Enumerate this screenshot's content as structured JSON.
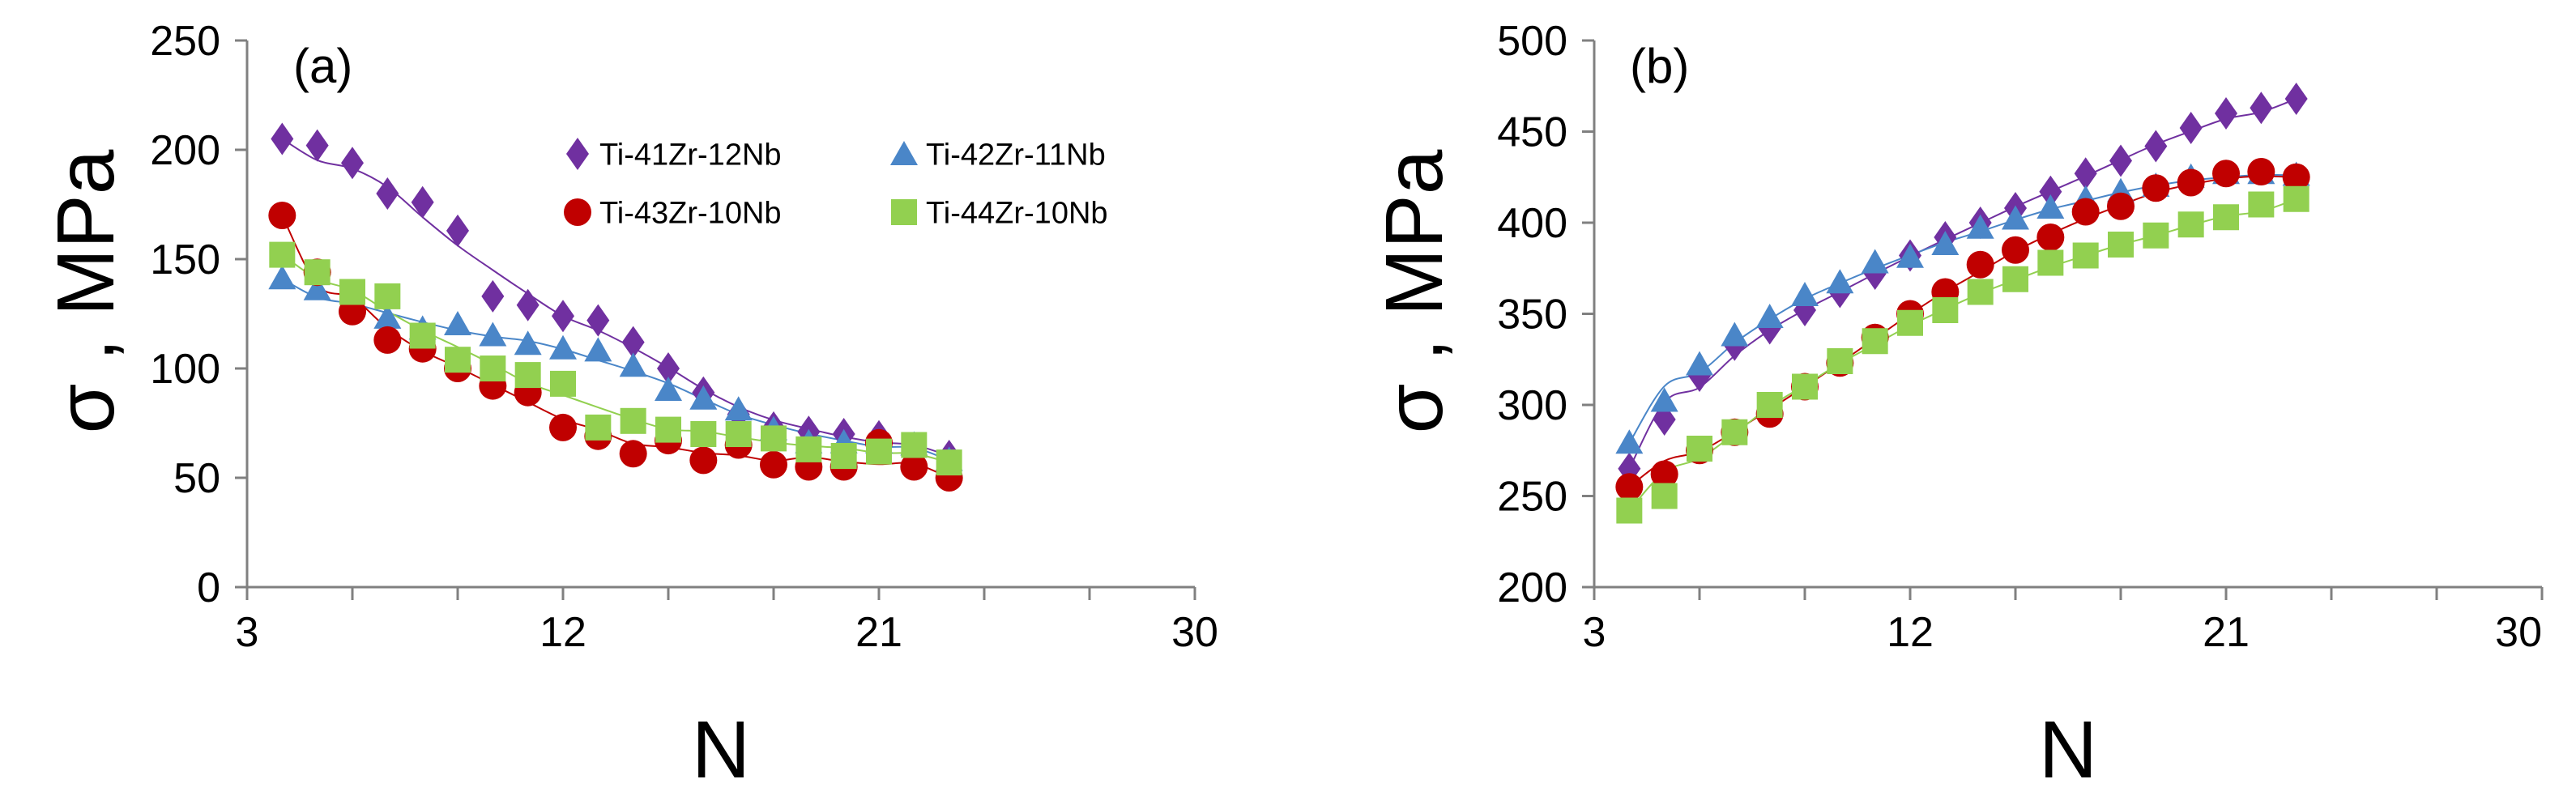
{
  "chart_data": [
    {
      "type": "scatter",
      "panel_label": "(a)",
      "xlabel": "N",
      "ylabel": "σ , MPa",
      "xlim": [
        3,
        30
      ],
      "ylim": [
        0,
        250
      ],
      "xticks": [
        "3",
        "12",
        "21",
        "30"
      ],
      "yticks": [
        "0",
        "50",
        "100",
        "150",
        "200",
        "250"
      ],
      "legend_position": "top-right",
      "series": [
        {
          "name": "Ti-41Zr-12Nb",
          "marker": "diamond",
          "color": "#7030A0",
          "x": [
            4,
            5,
            6,
            7,
            8,
            9,
            10,
            11,
            12,
            13,
            14,
            15,
            16,
            17,
            18,
            19,
            20,
            21,
            22,
            23
          ],
          "y": [
            205,
            202,
            194,
            180,
            176,
            163,
            133,
            129,
            124,
            122,
            112,
            100,
            89,
            79,
            73,
            71,
            70,
            69,
            61,
            60
          ]
        },
        {
          "name": "Ti-42Zr-11Nb",
          "marker": "triangle",
          "color": "#4A86C8",
          "x": [
            4,
            5,
            6,
            7,
            8,
            9,
            10,
            11,
            12,
            13,
            14,
            15,
            16,
            17,
            18,
            19,
            20,
            21,
            22,
            23
          ],
          "y": [
            141,
            136,
            130,
            123,
            118,
            120,
            115,
            111,
            109,
            108,
            101,
            90,
            86,
            81,
            72,
            66,
            66,
            66,
            65,
            58
          ]
        },
        {
          "name": "Ti-43Zr-10Nb",
          "marker": "circle",
          "color": "#C00000",
          "x": [
            4,
            5,
            6,
            7,
            8,
            9,
            10,
            11,
            12,
            13,
            14,
            15,
            16,
            17,
            18,
            19,
            20,
            21,
            22,
            23
          ],
          "y": [
            170,
            144,
            126,
            113,
            109,
            100,
            92,
            89,
            73,
            69,
            61,
            67,
            58,
            65,
            56,
            55,
            55,
            66,
            55,
            50
          ]
        },
        {
          "name": "Ti-44Zr-10Nb",
          "marker": "square",
          "color": "#92D050",
          "x": [
            4,
            5,
            6,
            7,
            8,
            9,
            10,
            11,
            12,
            13,
            14,
            15,
            16,
            17,
            18,
            19,
            20,
            21,
            22,
            23
          ],
          "y": [
            152,
            144,
            135,
            133,
            115,
            104,
            100,
            97,
            93,
            73,
            76,
            72,
            70,
            70,
            68,
            63,
            60,
            62,
            65,
            57
          ]
        }
      ]
    },
    {
      "type": "scatter",
      "panel_label": "(b)",
      "xlabel": "N",
      "ylabel": "σ , MPa",
      "xlim": [
        3,
        30
      ],
      "ylim": [
        200,
        500
      ],
      "xticks": [
        "3",
        "12",
        "21",
        "30"
      ],
      "yticks": [
        "200",
        "250",
        "300",
        "350",
        "400",
        "450",
        "500"
      ],
      "series": [
        {
          "name": "Ti-41Zr-12Nb",
          "marker": "diamond",
          "color": "#7030A0",
          "x": [
            4,
            5,
            6,
            7,
            8,
            9,
            10,
            11,
            12,
            13,
            14,
            15,
            16,
            17,
            18,
            19,
            20,
            21,
            22,
            23
          ],
          "y": [
            265,
            292,
            316,
            333,
            342,
            352,
            362,
            372,
            382,
            392,
            400,
            408,
            417,
            427,
            434,
            442,
            452,
            460,
            463,
            468
          ]
        },
        {
          "name": "Ti-42Zr-11Nb",
          "marker": "triangle",
          "color": "#4A86C8",
          "x": [
            4,
            5,
            6,
            7,
            8,
            9,
            10,
            11,
            12,
            13,
            14,
            15,
            16,
            17,
            18,
            19,
            20,
            21,
            22,
            23
          ],
          "y": [
            279,
            302,
            322,
            338,
            348,
            360,
            367,
            378,
            381,
            388,
            397,
            402,
            408,
            413,
            417,
            420,
            425,
            427,
            427,
            426
          ]
        },
        {
          "name": "Ti-43Zr-10Nb",
          "marker": "circle",
          "color": "#C00000",
          "x": [
            4,
            5,
            6,
            7,
            8,
            9,
            10,
            11,
            12,
            13,
            14,
            15,
            16,
            17,
            18,
            19,
            20,
            21,
            22,
            23
          ],
          "y": [
            255,
            262,
            275,
            285,
            295,
            310,
            323,
            337,
            350,
            362,
            377,
            385,
            392,
            406,
            409,
            419,
            422,
            427,
            428,
            425
          ]
        },
        {
          "name": "Ti-44Zr-10Nb",
          "marker": "square",
          "color": "#92D050",
          "x": [
            4,
            5,
            6,
            7,
            8,
            9,
            10,
            11,
            12,
            13,
            14,
            15,
            16,
            17,
            18,
            19,
            20,
            21,
            22,
            23
          ],
          "y": [
            242,
            250,
            276,
            285,
            300,
            310,
            324,
            335,
            345,
            352,
            362,
            369,
            378,
            382,
            388,
            393,
            399,
            403,
            410,
            413
          ]
        }
      ]
    }
  ]
}
